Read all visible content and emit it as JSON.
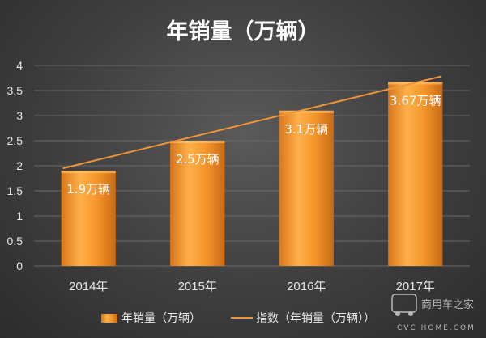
{
  "chart_data": {
    "type": "bar",
    "title": "年销量（万辆）",
    "categories": [
      "2014年",
      "2015年",
      "2016年",
      "2017年"
    ],
    "series": [
      {
        "name": "年销量（万辆）",
        "type": "bar",
        "values": [
          1.9,
          2.5,
          3.1,
          3.67
        ],
        "color": "#f28f1f"
      },
      {
        "name": "指数（年销量（万辆））",
        "type": "line",
        "color": "#f0953a"
      }
    ],
    "data_labels": [
      "1.9万辆",
      "2.5万辆",
      "3.1万辆",
      "3.67万辆"
    ],
    "trendline": {
      "start": 1.95,
      "end": 3.78
    },
    "ylim": [
      0,
      4
    ],
    "yticks": [
      "0",
      "0.5",
      "1",
      "1.5",
      "2",
      "2.5",
      "3",
      "3.5",
      "4"
    ],
    "grid": true,
    "legend_position": "bottom"
  },
  "watermark": {
    "line1": "商用车之家",
    "line2": "CVC HOME.COM"
  }
}
